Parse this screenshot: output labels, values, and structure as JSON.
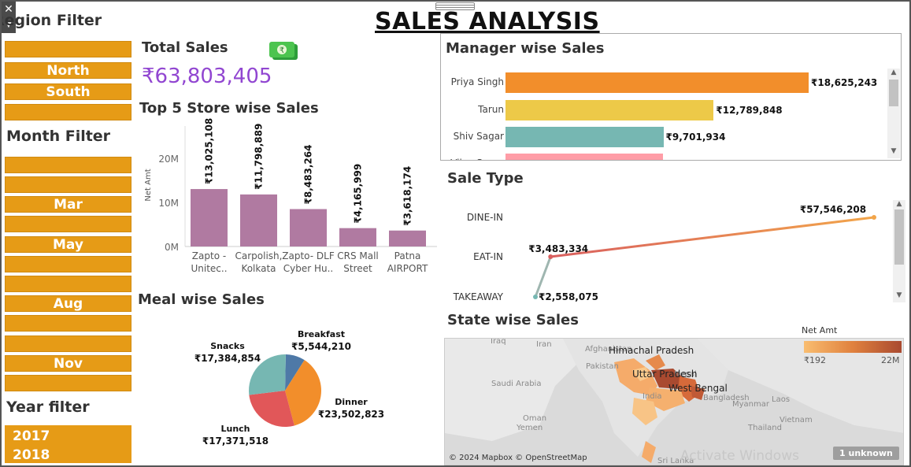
{
  "title": "SALES ANALYSIS",
  "colors": {
    "filter_chip": "#e69b16",
    "total_sales": "#9146d1",
    "store_bar": "#b07aa1",
    "priya": "#f28e2b",
    "tarun": "#edc948",
    "shiv": "#76b7b2",
    "vijay": "#ff9da7"
  },
  "region_filter": {
    "title": "Region Filter",
    "items": [
      "",
      "North",
      "South",
      ""
    ]
  },
  "month_filter": {
    "title": "Month Filter",
    "items": [
      "",
      "",
      "Mar",
      "",
      "May",
      "",
      "",
      "Aug",
      "",
      "",
      "Nov",
      ""
    ]
  },
  "year_filter": {
    "title": "Year filter",
    "items": [
      "2017",
      "2018"
    ]
  },
  "total_sales": {
    "title": "Total Sales",
    "value": "₹63,803,405",
    "icon": "money-icon"
  },
  "store_chart": {
    "title": "Top 5 Store wise Sales",
    "ylabel": "Net Amt",
    "ticks": [
      "20M",
      "10M",
      "0M"
    ],
    "chart_data": {
      "type": "bar",
      "categories": [
        "Zapto - Unitec..",
        "Carpolish, Kolkata",
        "Zapto- DLF Cyber Hu..",
        "CRS Mall Street",
        "Patna AIRPORT"
      ],
      "category_lines": [
        [
          "Zapto -",
          "Unitec.."
        ],
        [
          "Carpolish,",
          "Kolkata"
        ],
        [
          "Zapto- DLF",
          "Cyber Hu.."
        ],
        [
          "CRS Mall",
          "Street"
        ],
        [
          "Patna",
          "AIRPORT"
        ]
      ],
      "values": [
        13025108,
        11798889,
        8483264,
        4165999,
        3618174
      ],
      "labels": [
        "₹13,025,108",
        "₹11,798,889",
        "₹8,483,264",
        "₹4,165,999",
        "₹3,618,174"
      ],
      "ylabel": "Net Amt",
      "ylim": [
        0,
        20000000
      ]
    }
  },
  "manager_chart": {
    "title": "Manager wise Sales",
    "chart_data": {
      "type": "bar",
      "categories": [
        "Priya Singh",
        "Tarun",
        "Shiv Sagar",
        "Vijay Sagar"
      ],
      "values": [
        18625243,
        12789848,
        9701934,
        null
      ],
      "labels": [
        "₹18,625,243",
        "₹12,789,848",
        "₹9,701,934",
        ""
      ],
      "colors": [
        "#f28e2b",
        "#edc948",
        "#76b7b2",
        "#ff9da7"
      ]
    }
  },
  "meal_chart": {
    "title": "Meal wise Sales",
    "chart_data": {
      "type": "pie",
      "categories": [
        "Breakfast",
        "Dinner",
        "Lunch",
        "Snacks"
      ],
      "values": [
        5544210,
        23502823,
        17371518,
        17384854
      ],
      "labels": [
        "₹5,544,210",
        "₹23,502,823",
        "₹17,371,518",
        "₹17,384,854"
      ],
      "colors": [
        "#4e79a7",
        "#f28e2b",
        "#e15759",
        "#76b7b2"
      ]
    }
  },
  "sale_type_chart": {
    "title": "Sale Type",
    "chart_data": {
      "type": "line",
      "categories": [
        "DINE-IN",
        "EAT-IN",
        "TAKEAWAY"
      ],
      "values": [
        57546208,
        3483334,
        2558075
      ],
      "labels": [
        "₹57,546,208",
        "₹3,483,334",
        "₹2,558,075"
      ]
    }
  },
  "state_map": {
    "title": "State wise Sales",
    "legend_title": "Net Amt",
    "legend_min": "₹192",
    "legend_max": "22M",
    "states": [
      "Himachal Pradesh",
      "Uttar Pradesh",
      "West Bengal"
    ],
    "places": [
      "Iraq",
      "Iran",
      "Afghanistan",
      "Pakistan",
      "Saudi Arabia",
      "Oman",
      "Yemen",
      "Nepal",
      "India",
      "Bangladesh",
      "Myanmar",
      "Thailand",
      "Vietnam",
      "Laos",
      "Sri Lanka"
    ],
    "credit": "© 2024 Mapbox © OpenStreetMap",
    "unknown": "1 unknown"
  },
  "watermark": "Activate Windows"
}
